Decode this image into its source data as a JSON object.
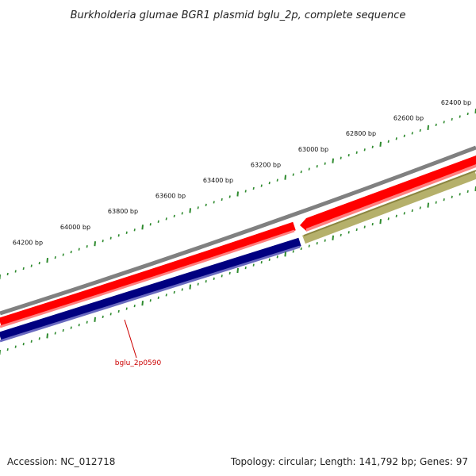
{
  "title": "Burkholderia glumae BGR1 plasmid bglu_2p, complete sequence",
  "tick_labels": [
    "62400 bp",
    "62600 bp",
    "62800 bp",
    "63000 bp",
    "63200 bp",
    "63400 bp",
    "63600 bp",
    "63800 bp",
    "64000 bp",
    "64200 bp"
  ],
  "gene_label": "bglu_2p0590",
  "footer": {
    "accession": "Accession: NC_012718",
    "summary": "Topology: circular; Length: 141,792 bp; Genes: 97"
  },
  "colors": {
    "backbone": "#808080",
    "forward_gene": "#ff0000",
    "reverse_gene": "#000080",
    "other_feature": "#b5b06b",
    "tick": "#2d8a2d",
    "gene_label": "#cc0000"
  }
}
